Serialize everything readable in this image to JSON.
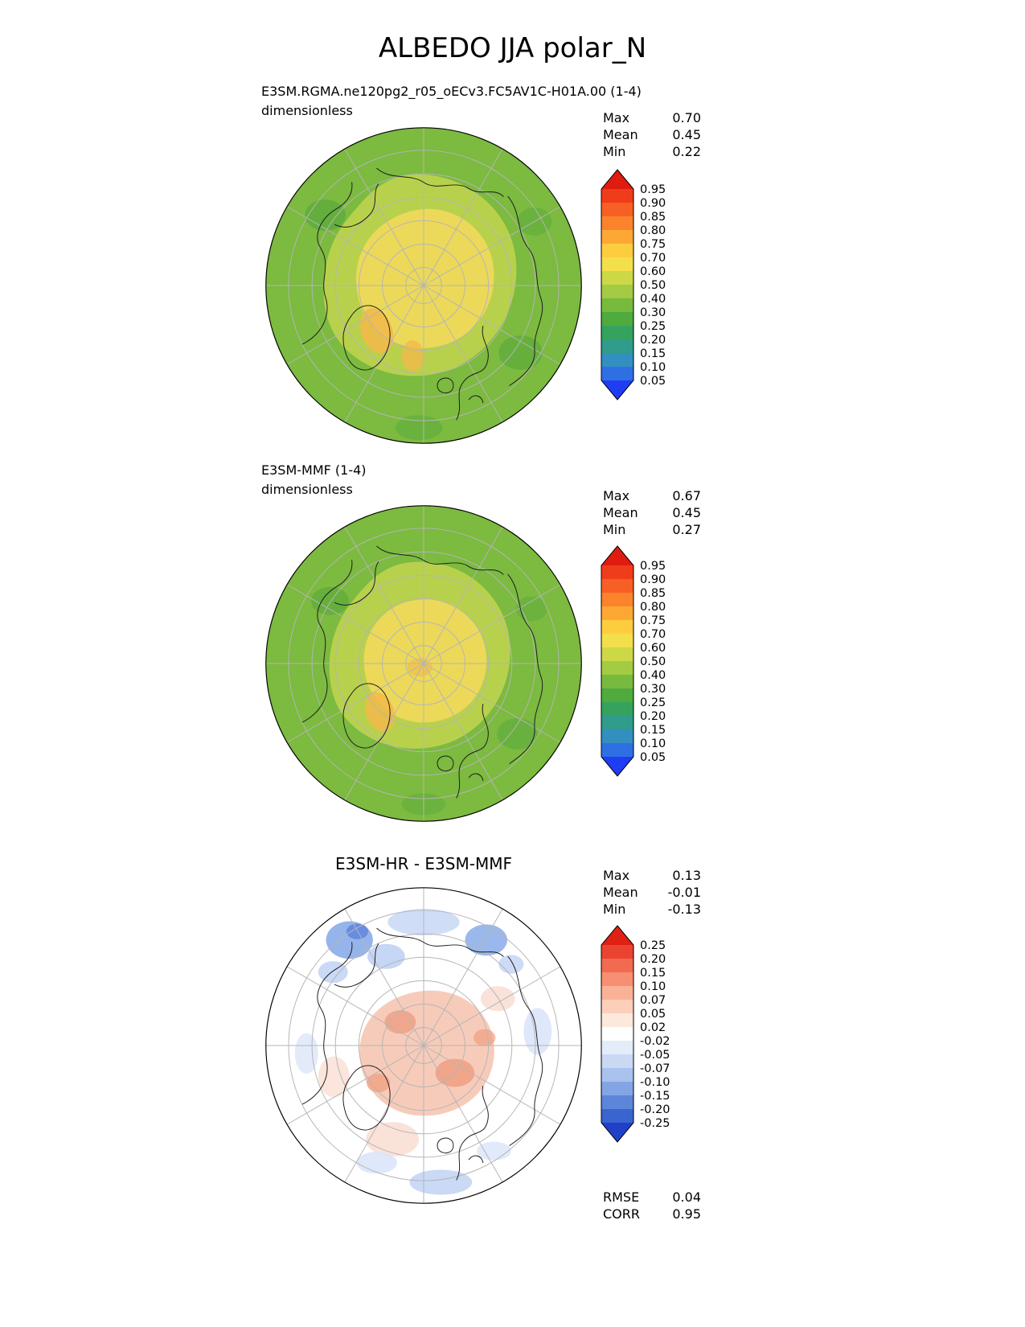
{
  "title": "ALBEDO JJA polar_N",
  "panels": [
    {
      "label": "E3SM.RGMA.ne120pg2_r05_oECv3.FC5AV1C-H01A.00 (1-4)",
      "units": "dimensionless",
      "stats": [
        {
          "label": "Max",
          "value": "0.70"
        },
        {
          "label": "Mean",
          "value": "0.45"
        },
        {
          "label": "Min",
          "value": "0.22"
        }
      ],
      "colorbar": {
        "ticks": [
          "0.95",
          "0.90",
          "0.85",
          "0.80",
          "0.75",
          "0.70",
          "0.60",
          "0.50",
          "0.40",
          "0.30",
          "0.25",
          "0.20",
          "0.15",
          "0.10",
          "0.05"
        ],
        "colors": [
          "#e01b10",
          "#ef3c1b",
          "#f75f24",
          "#fb832c",
          "#fda835",
          "#fdcd3f",
          "#f3df4b",
          "#cdd847",
          "#a3cb43",
          "#77ba3e",
          "#4fab3e",
          "#35a25e",
          "#2f9c8c",
          "#338fc0",
          "#2f6fe4",
          "#1f3df2"
        ]
      }
    },
    {
      "label": "E3SM-MMF (1-4)",
      "units": "dimensionless",
      "stats": [
        {
          "label": "Max",
          "value": "0.67"
        },
        {
          "label": "Mean",
          "value": "0.45"
        },
        {
          "label": "Min",
          "value": "0.27"
        }
      ],
      "colorbar": {
        "ticks": [
          "0.95",
          "0.90",
          "0.85",
          "0.80",
          "0.75",
          "0.70",
          "0.60",
          "0.50",
          "0.40",
          "0.30",
          "0.25",
          "0.20",
          "0.15",
          "0.10",
          "0.05"
        ],
        "colors": [
          "#e01b10",
          "#ef3c1b",
          "#f75f24",
          "#fb832c",
          "#fda835",
          "#fdcd3f",
          "#f3df4b",
          "#cdd847",
          "#a3cb43",
          "#77ba3e",
          "#4fab3e",
          "#35a25e",
          "#2f9c8c",
          "#338fc0",
          "#2f6fe4",
          "#1f3df2"
        ]
      }
    },
    {
      "label": "E3SM-HR - E3SM-MMF",
      "stats": [
        {
          "label": "Max",
          "value": "0.13"
        },
        {
          "label": "Mean",
          "value": "-0.01"
        },
        {
          "label": "Min",
          "value": "-0.13"
        }
      ],
      "extra_stats": [
        {
          "label": "RMSE",
          "value": "0.04"
        },
        {
          "label": "CORR",
          "value": "0.95"
        }
      ],
      "colorbar": {
        "ticks": [
          "0.25",
          "0.20",
          "0.15",
          "0.10",
          "0.07",
          "0.05",
          "0.02",
          "-0.02",
          "-0.05",
          "-0.07",
          "-0.10",
          "-0.15",
          "-0.20",
          "-0.25"
        ],
        "colors": [
          "#df2013",
          "#ea4430",
          "#f26a50",
          "#f78f72",
          "#fab296",
          "#fccfba",
          "#fde8dd",
          "#ffffff",
          "#e3ecf9",
          "#c9d9f4",
          "#a9c2ee",
          "#84a5e5",
          "#5d85da",
          "#3a64cf",
          "#2040c8"
        ]
      }
    }
  ],
  "map_colors": {
    "albedo_bg": "#7cba40",
    "albedo_mid": "#b8d14c",
    "albedo_center": "#ecd95a",
    "albedo_warm": "#f2b94a",
    "albedo_dark": "#58a93c",
    "diff_bg": "#ffffff",
    "diff_red_light": "#f6c5b2",
    "diff_red_mid": "#ef9b7d",
    "diff_pink_faint": "#fadfd5",
    "diff_blue_deep": "#6288dd",
    "diff_blue_mid": "#8aace9",
    "diff_blue_light": "#c0d2f4",
    "diff_blue_faint": "#dce6fa",
    "graticule": "#b5b5b5",
    "coastline": "#1c1c1c"
  },
  "chart_data": [
    {
      "type": "heatmap",
      "panel": "top",
      "title": "E3SM.RGMA.ne120pg2_r05_oECv3.FC5AV1C-H01A.00 (1-4)",
      "variable": "ALBEDO",
      "season": "JJA",
      "region": "polar_N",
      "units": "dimensionless",
      "projection": "north-polar-stereographic",
      "stats": {
        "max": 0.7,
        "mean": 0.45,
        "min": 0.22
      },
      "contour_levels": [
        0.05,
        0.1,
        0.15,
        0.2,
        0.25,
        0.3,
        0.4,
        0.5,
        0.6,
        0.7,
        0.75,
        0.8,
        0.85,
        0.9,
        0.95
      ],
      "legend_position": "right",
      "description": "Mostly green (albedo 0.4-0.5) over sub-polar ocean/land with yellow (0.6-0.7) high-albedo sea-ice region centered on the pole; small orange patches near Greenland."
    },
    {
      "type": "heatmap",
      "panel": "middle",
      "title": "E3SM-MMF (1-4)",
      "variable": "ALBEDO",
      "season": "JJA",
      "region": "polar_N",
      "units": "dimensionless",
      "projection": "north-polar-stereographic",
      "stats": {
        "max": 0.67,
        "mean": 0.45,
        "min": 0.27
      },
      "contour_levels": [
        0.05,
        0.1,
        0.15,
        0.2,
        0.25,
        0.3,
        0.4,
        0.5,
        0.6,
        0.7,
        0.75,
        0.8,
        0.85,
        0.9,
        0.95
      ],
      "legend_position": "right",
      "description": "Similar green field with slightly smaller yellow polar cap (0.5-0.6)."
    },
    {
      "type": "heatmap",
      "panel": "bottom",
      "title": "E3SM-HR - E3SM-MMF",
      "variable": "ALBEDO difference",
      "season": "JJA",
      "region": "polar_N",
      "units": "dimensionless",
      "projection": "north-polar-stereographic",
      "stats": {
        "max": 0.13,
        "mean": -0.01,
        "min": -0.13,
        "rmse": 0.04,
        "corr": 0.95
      },
      "contour_levels": [
        -0.25,
        -0.2,
        -0.15,
        -0.1,
        -0.07,
        -0.05,
        -0.02,
        0.02,
        0.05,
        0.07,
        0.1,
        0.15,
        0.2,
        0.25
      ],
      "legend_position": "right",
      "description": "Near-zero (white) over most of the domain; light red positive differences (0.02-0.10) over the central Arctic; blue negative patches (-0.05 to -0.15) over the top of the map and scattered light blue along the lower edge."
    }
  ]
}
